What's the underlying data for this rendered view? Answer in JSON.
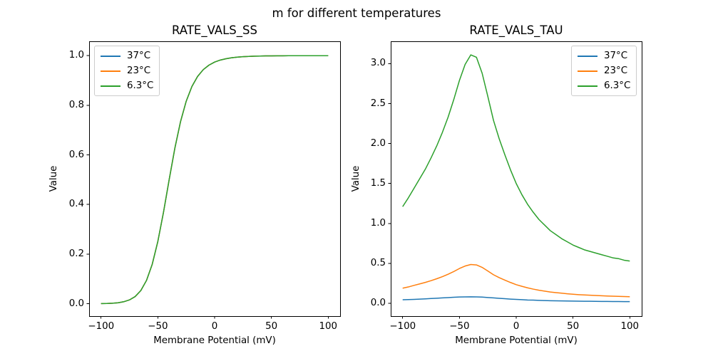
{
  "figure": {
    "suptitle": "m for different temperatures",
    "background_color": "#ffffff",
    "text_color": "#000000",
    "axes_edge_color": "#000000",
    "legend_border_color": "#cccccc"
  },
  "chart_data": [
    {
      "type": "line",
      "title": "RATE_VALS_SS",
      "xlabel": "Membrane Potential (mV)",
      "ylabel": "Value",
      "grid": false,
      "legend_position": "upper left",
      "xlim": [
        -110.5,
        110.5
      ],
      "ylim": [
        -0.05,
        1.058
      ],
      "xticks": {
        "values": [
          -100,
          -50,
          0,
          50,
          100
        ],
        "labels": [
          "−100",
          "−50",
          "0",
          "50",
          "100"
        ]
      },
      "yticks": {
        "values": [
          0.0,
          0.2,
          0.4,
          0.6,
          0.8,
          1.0
        ],
        "labels": [
          "0.0",
          "0.2",
          "0.4",
          "0.6",
          "0.8",
          "1.0"
        ]
      },
      "x": [
        -100,
        -95,
        -90,
        -85,
        -80,
        -75,
        -70,
        -65,
        -60,
        -55,
        -50,
        -45,
        -40,
        -35,
        -30,
        -25,
        -20,
        -15,
        -10,
        -5,
        0,
        5,
        10,
        15,
        20,
        25,
        30,
        35,
        40,
        45,
        50,
        55,
        60,
        65,
        70,
        75,
        80,
        85,
        90,
        95,
        100
      ],
      "series": [
        {
          "name": "37°C",
          "color": "#1f77b4",
          "values": [
            0.0005,
            0.001,
            0.0019,
            0.0039,
            0.008,
            0.0154,
            0.0288,
            0.0529,
            0.0937,
            0.158,
            0.2509,
            0.3692,
            0.5006,
            0.6272,
            0.7343,
            0.8166,
            0.8756,
            0.9163,
            0.9437,
            0.9619,
            0.9742,
            0.9824,
            0.9878,
            0.9916,
            0.9941,
            0.9959,
            0.9971,
            0.998,
            0.9985,
            0.999,
            0.9993,
            0.9995,
            0.9996,
            0.9997,
            0.9998,
            0.9998,
            0.9999,
            0.9999,
            0.9999,
            1.0,
            1.0
          ]
        },
        {
          "name": "23°C",
          "color": "#ff7f0e",
          "values": [
            0.0005,
            0.001,
            0.0019,
            0.0039,
            0.008,
            0.0154,
            0.0288,
            0.0529,
            0.0937,
            0.158,
            0.2509,
            0.3692,
            0.5006,
            0.6272,
            0.7343,
            0.8166,
            0.8756,
            0.9163,
            0.9437,
            0.9619,
            0.9742,
            0.9824,
            0.9878,
            0.9916,
            0.9941,
            0.9959,
            0.9971,
            0.998,
            0.9985,
            0.999,
            0.9993,
            0.9995,
            0.9996,
            0.9997,
            0.9998,
            0.9998,
            0.9999,
            0.9999,
            0.9999,
            1.0,
            1.0
          ]
        },
        {
          "name": "6.3°C",
          "color": "#2ca02c",
          "values": [
            0.0005,
            0.001,
            0.0019,
            0.0039,
            0.008,
            0.0154,
            0.0288,
            0.0529,
            0.0937,
            0.158,
            0.2509,
            0.3692,
            0.5006,
            0.6272,
            0.7343,
            0.8166,
            0.8756,
            0.9163,
            0.9437,
            0.9619,
            0.9742,
            0.9824,
            0.9878,
            0.9916,
            0.9941,
            0.9959,
            0.9971,
            0.998,
            0.9985,
            0.999,
            0.9993,
            0.9995,
            0.9996,
            0.9997,
            0.9998,
            0.9998,
            0.9999,
            0.9999,
            0.9999,
            1.0,
            1.0
          ]
        }
      ]
    },
    {
      "type": "line",
      "title": "RATE_VALS_TAU",
      "xlabel": "Membrane Potential (mV)",
      "ylabel": "Value",
      "grid": false,
      "legend_position": "upper right",
      "xlim": [
        -110.5,
        110.5
      ],
      "ylim": [
        -0.16,
        3.28
      ],
      "xticks": {
        "values": [
          -100,
          -50,
          0,
          50,
          100
        ],
        "labels": [
          "−100",
          "−50",
          "0",
          "50",
          "100"
        ]
      },
      "yticks": {
        "values": [
          0.0,
          0.5,
          1.0,
          1.5,
          2.0,
          2.5,
          3.0
        ],
        "labels": [
          "0.0",
          "0.5",
          "1.0",
          "1.5",
          "2.0",
          "2.5",
          "3.0"
        ]
      },
      "x": [
        -100,
        -95,
        -90,
        -85,
        -80,
        -75,
        -70,
        -65,
        -60,
        -55,
        -50,
        -45,
        -40,
        -35,
        -30,
        -25,
        -20,
        -15,
        -10,
        -5,
        0,
        5,
        10,
        15,
        20,
        25,
        30,
        35,
        40,
        45,
        50,
        55,
        60,
        65,
        70,
        75,
        80,
        85,
        90,
        95,
        100
      ],
      "series": [
        {
          "name": "37°C",
          "color": "#1f77b4",
          "values": [
            0.045,
            0.047,
            0.05,
            0.053,
            0.056,
            0.06,
            0.064,
            0.068,
            0.072,
            0.076,
            0.079,
            0.081,
            0.082,
            0.081,
            0.078,
            0.073,
            0.068,
            0.063,
            0.058,
            0.053,
            0.049,
            0.046,
            0.042,
            0.04,
            0.037,
            0.035,
            0.033,
            0.032,
            0.03,
            0.029,
            0.028,
            0.027,
            0.026,
            0.026,
            0.025,
            0.024,
            0.024,
            0.023,
            0.023,
            0.022,
            0.022
          ]
        },
        {
          "name": "23°C",
          "color": "#ff7f0e",
          "values": [
            0.19,
            0.205,
            0.225,
            0.243,
            0.262,
            0.284,
            0.308,
            0.334,
            0.364,
            0.398,
            0.436,
            0.467,
            0.486,
            0.481,
            0.45,
            0.405,
            0.358,
            0.322,
            0.291,
            0.261,
            0.234,
            0.213,
            0.194,
            0.178,
            0.164,
            0.153,
            0.142,
            0.134,
            0.127,
            0.12,
            0.114,
            0.109,
            0.105,
            0.102,
            0.098,
            0.095,
            0.092,
            0.089,
            0.087,
            0.085,
            0.083
          ]
        },
        {
          "name": "6.3°C",
          "color": "#2ca02c",
          "values": [
            1.21,
            1.32,
            1.44,
            1.56,
            1.68,
            1.82,
            1.97,
            2.14,
            2.33,
            2.55,
            2.79,
            2.99,
            3.11,
            3.08,
            2.88,
            2.59,
            2.29,
            2.06,
            1.86,
            1.67,
            1.5,
            1.36,
            1.24,
            1.14,
            1.05,
            0.98,
            0.91,
            0.86,
            0.81,
            0.77,
            0.73,
            0.7,
            0.67,
            0.65,
            0.63,
            0.61,
            0.59,
            0.57,
            0.56,
            0.54,
            0.53
          ]
        }
      ]
    }
  ]
}
